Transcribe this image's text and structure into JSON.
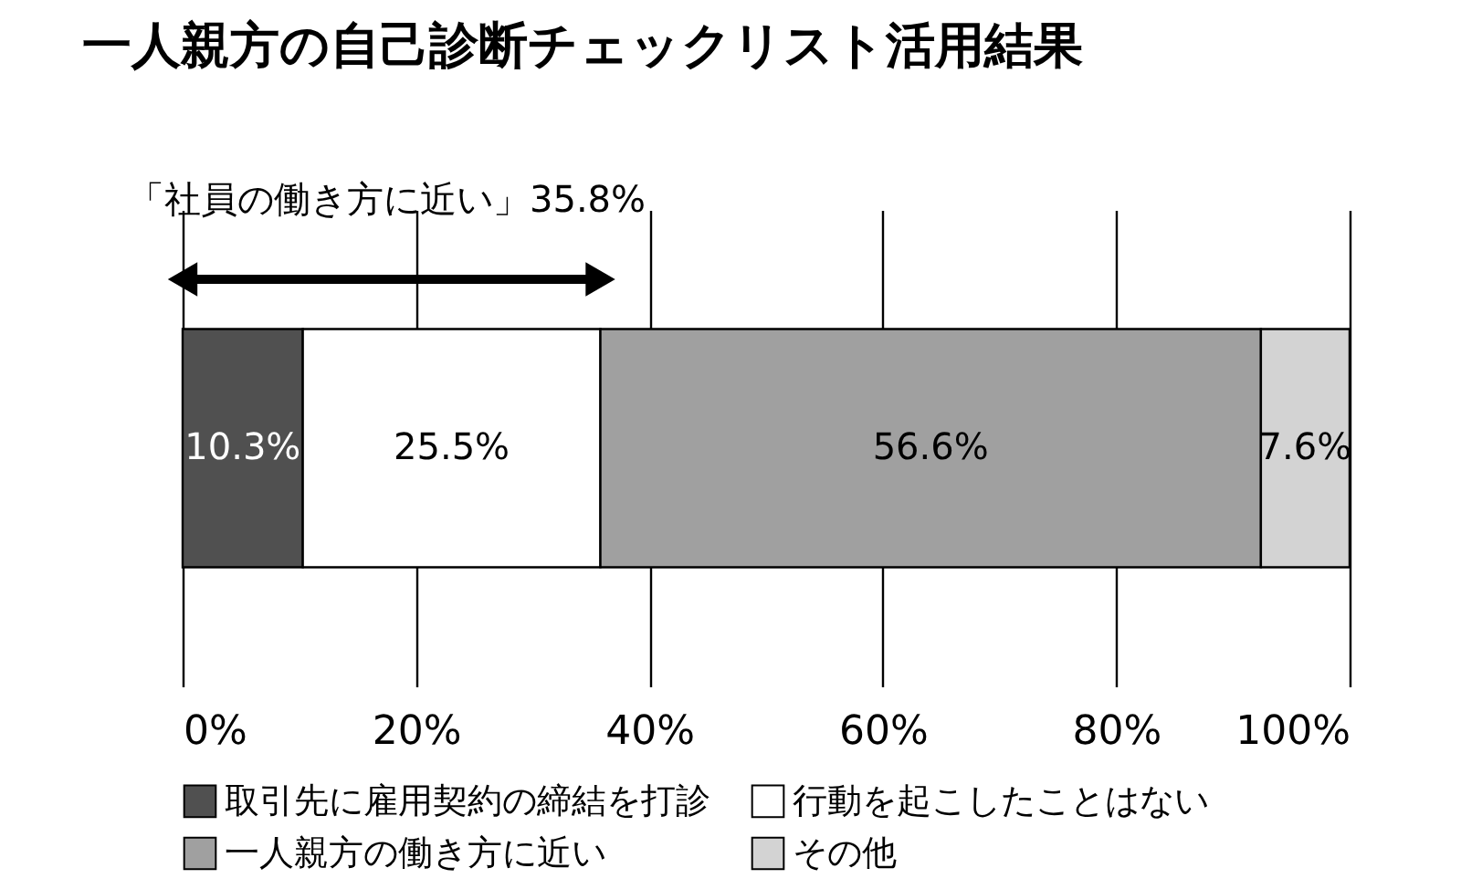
{
  "chart_data": {
    "type": "bar",
    "orientation": "horizontal",
    "stacked": true,
    "title": "一人親方の自己診断チェックリスト活用結果",
    "categories": [
      null
    ],
    "series": [
      {
        "name": "取引先に雇用契約の締結を打診",
        "color": "#505050",
        "values": [
          10.3
        ],
        "value_labels": [
          "10.3%"
        ]
      },
      {
        "name": "行動を起こしたことはない",
        "color": "#ffffff",
        "values": [
          25.5
        ],
        "value_labels": [
          "25.5%"
        ]
      },
      {
        "name": "一人親方の働き方に近い",
        "color": "#a0a0a0",
        "values": [
          56.6
        ],
        "value_labels": [
          "56.6%"
        ]
      },
      {
        "name": "その他",
        "color": "#d3d3d3",
        "values": [
          7.6
        ],
        "value_labels": [
          "7.6%"
        ]
      }
    ],
    "xlim": [
      0,
      100
    ],
    "xticks": [
      {
        "value": 0,
        "label": "0%"
      },
      {
        "value": 20,
        "label": "20%"
      },
      {
        "value": 40,
        "label": "40%"
      },
      {
        "value": 60,
        "label": "60%"
      },
      {
        "value": 80,
        "label": "80%"
      },
      {
        "value": 100,
        "label": "100%"
      }
    ],
    "grid": "x",
    "legend": "bottom",
    "annotations": [
      "「社員の働き方に近い」35.8%"
    ]
  }
}
